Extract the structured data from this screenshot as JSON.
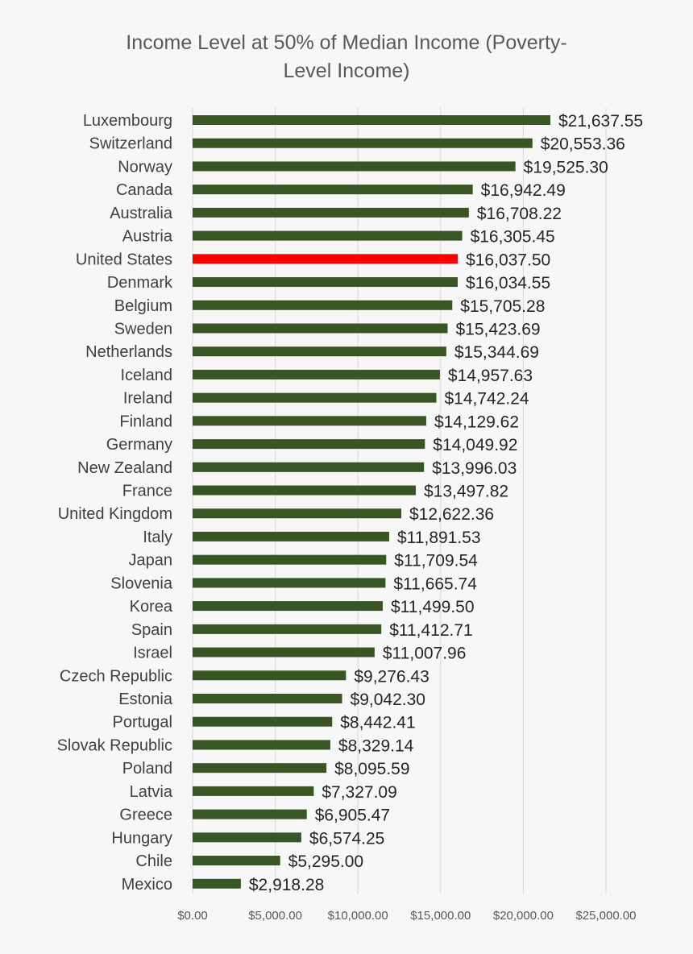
{
  "chart_data": {
    "type": "bar",
    "orientation": "horizontal",
    "title_line1": "Income Level at 50% of Median Income (Poverty-",
    "title_line2": "Level Income)",
    "categories": [
      "Luxembourg",
      "Switzerland",
      "Norway",
      "Canada",
      "Australia",
      "Austria",
      "United States",
      "Denmark",
      "Belgium",
      "Sweden",
      "Netherlands",
      "Iceland",
      "Ireland",
      "Finland",
      "Germany",
      "New Zealand",
      "France",
      "United Kingdom",
      "Italy",
      "Japan",
      "Slovenia",
      "Korea",
      "Spain",
      "Israel",
      "Czech Republic",
      "Estonia",
      "Portugal",
      "Slovak Republic",
      "Poland",
      "Latvia",
      "Greece",
      "Hungary",
      "Chile",
      "Mexico"
    ],
    "values": [
      21637.55,
      20553.36,
      19525.3,
      16942.49,
      16708.22,
      16305.45,
      16037.5,
      16034.55,
      15705.28,
      15423.69,
      15344.69,
      14957.63,
      14742.24,
      14129.62,
      14049.92,
      13996.03,
      13497.82,
      12622.36,
      11891.53,
      11709.54,
      11665.74,
      11499.5,
      11412.71,
      11007.96,
      9276.43,
      9042.3,
      8442.41,
      8329.14,
      8095.59,
      7327.09,
      6905.47,
      6574.25,
      5295.0,
      2918.28
    ],
    "value_labels": [
      "$21,637.55",
      "$20,553.36",
      "$19,525.30",
      "$16,942.49",
      "$16,708.22",
      "$16,305.45",
      "$16,037.50",
      "$16,034.55",
      "$15,705.28",
      "$15,423.69",
      "$15,344.69",
      "$14,957.63",
      "$14,742.24",
      "$14,129.62",
      "$14,049.92",
      "$13,996.03",
      "$13,497.82",
      "$12,622.36",
      "$11,891.53",
      "$11,709.54",
      "$11,665.74",
      "$11,499.50",
      "$11,412.71",
      "$11,007.96",
      "$9,276.43",
      "$9,042.30",
      "$8,442.41",
      "$8,329.14",
      "$8,095.59",
      "$7,327.09",
      "$6,905.47",
      "$6,574.25",
      "$5,295.00",
      "$2,918.28"
    ],
    "highlight_category": "United States",
    "colors": {
      "bar": "#375623",
      "highlight": "#ff0000",
      "grid": "#d9d9d9"
    },
    "xlim": [
      0,
      25000
    ],
    "xticks": [
      0,
      5000,
      10000,
      15000,
      20000,
      25000
    ],
    "xtick_labels": [
      "$0.00",
      "$5,000.00",
      "$10,000.00",
      "$15,000.00",
      "$20,000.00",
      "$25,000.00"
    ],
    "grid": true,
    "legend": "none"
  }
}
